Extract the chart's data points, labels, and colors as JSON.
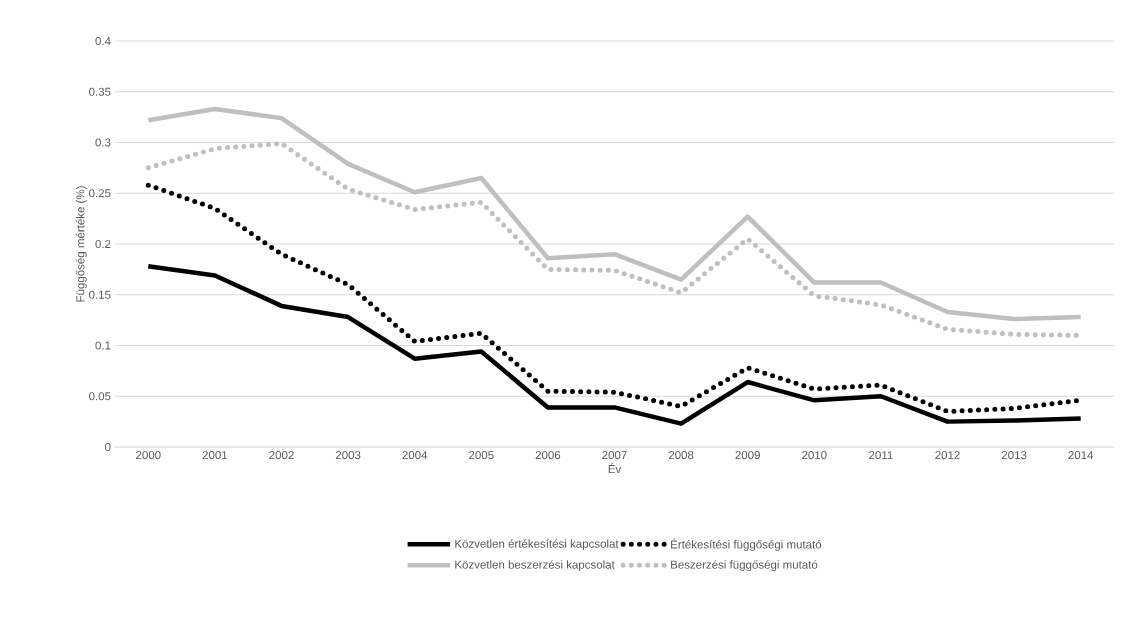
{
  "chart_data": {
    "type": "line",
    "xlabel": "Év",
    "ylabel": "Függőség mértéke (%)",
    "categories": [
      "2000",
      "2001",
      "2002",
      "2003",
      "2004",
      "2005",
      "2006",
      "2007",
      "2008",
      "2009",
      "2010",
      "2011",
      "2012",
      "2013",
      "2014"
    ],
    "series": [
      {
        "name": "Közvetlen értékesítési kapcsolat",
        "color": "#000000",
        "line_style": "solid",
        "values": [
          0.178,
          0.169,
          0.139,
          0.128,
          0.087,
          0.094,
          0.039,
          0.039,
          0.023,
          0.064,
          0.046,
          0.05,
          0.025,
          0.026,
          0.028
        ]
      },
      {
        "name": "Értékesítési függőségi mutató",
        "color": "#000000",
        "line_style": "dotted",
        "values": [
          0.258,
          0.235,
          0.19,
          0.16,
          0.104,
          0.112,
          0.055,
          0.054,
          0.04,
          0.078,
          0.057,
          0.061,
          0.035,
          0.038,
          0.046
        ]
      },
      {
        "name": "Közvetlen beszerzési kapcsolat",
        "color": "#bfbfbf",
        "line_style": "solid",
        "values": [
          0.322,
          0.333,
          0.324,
          0.279,
          0.251,
          0.265,
          0.186,
          0.19,
          0.165,
          0.227,
          0.162,
          0.162,
          0.133,
          0.126,
          0.128
        ]
      },
      {
        "name": "Beszerzési függőségi mutató",
        "color": "#bfbfbf",
        "line_style": "dotted",
        "values": [
          0.275,
          0.294,
          0.299,
          0.254,
          0.234,
          0.241,
          0.175,
          0.174,
          0.152,
          0.205,
          0.149,
          0.14,
          0.116,
          0.111,
          0.11
        ]
      }
    ],
    "ylim": [
      0,
      0.4
    ],
    "yticks": [
      0,
      0.05,
      0.1,
      0.15,
      0.2,
      0.25,
      0.3,
      0.35,
      0.4
    ],
    "grid": "y",
    "legend": "bottom",
    "marker": "none"
  }
}
